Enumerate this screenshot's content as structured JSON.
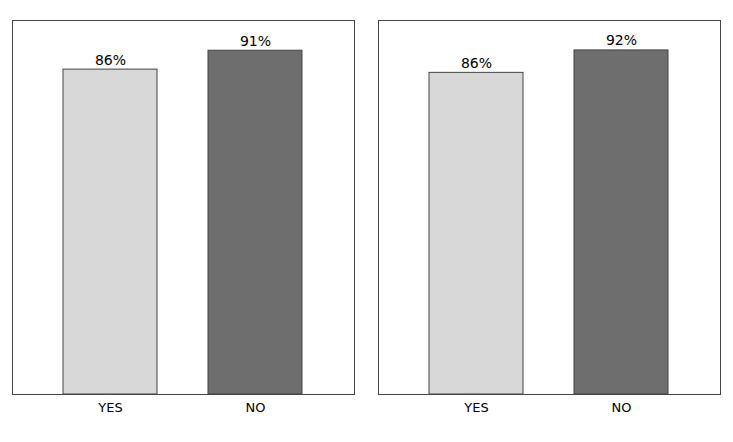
{
  "chart_data": [
    {
      "type": "bar",
      "categories": [
        "YES",
        "NO"
      ],
      "values": [
        86,
        91
      ],
      "value_labels": [
        "86%",
        "91%"
      ],
      "colors": [
        "#d8d8d8",
        "#6e6e6e"
      ],
      "ylim": [
        0,
        99
      ],
      "data_labels": true,
      "tick_labels": "x"
    },
    {
      "type": "bar",
      "categories": [
        "YES",
        "NO"
      ],
      "values": [
        86,
        92
      ],
      "value_labels": [
        "86%",
        "92%"
      ],
      "colors": [
        "#d8d8d8",
        "#6e6e6e"
      ],
      "ylim": [
        0,
        100
      ],
      "data_labels": true,
      "tick_labels": "x"
    }
  ]
}
